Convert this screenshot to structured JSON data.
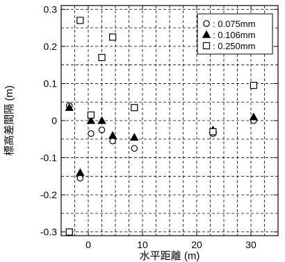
{
  "chart_data": {
    "type": "scatter",
    "xlabel": "水平距離 (m)",
    "ylabel": "標高差間隔 (m)",
    "xlim": [
      -5,
      35
    ],
    "ylim": [
      -0.31,
      0.31
    ],
    "x_ticks": [
      0,
      10,
      20,
      30
    ],
    "y_ticks": [
      -0.3,
      -0.2,
      -0.1,
      0,
      0.1,
      0.2,
      0.3
    ],
    "x_tick_labels": [
      "0",
      "10",
      "20",
      "30"
    ],
    "y_tick_labels": [
      "-0.3",
      "-0.2",
      "-0.1",
      "0",
      "0.1",
      "0.2",
      "0.3"
    ],
    "grid": true,
    "legend_position": "top-right",
    "series": [
      {
        "name": ": 0.075mm",
        "marker": "circle-open",
        "points": [
          {
            "x": -3.5,
            "y": 0.04
          },
          {
            "x": -1.5,
            "y": -0.155
          },
          {
            "x": 0.5,
            "y": -0.035
          },
          {
            "x": 2.5,
            "y": -0.025
          },
          {
            "x": 4.5,
            "y": -0.055
          },
          {
            "x": 8.5,
            "y": -0.075
          },
          {
            "x": 23.0,
            "y": -0.035
          },
          {
            "x": 30.5,
            "y": 0.0
          }
        ]
      },
      {
        "name": ": 0.106mm",
        "marker": "triangle-filled",
        "points": [
          {
            "x": -3.5,
            "y": 0.035
          },
          {
            "x": -1.5,
            "y": -0.14
          },
          {
            "x": 0.5,
            "y": 0.0
          },
          {
            "x": 2.5,
            "y": 0.0
          },
          {
            "x": 4.5,
            "y": -0.04
          },
          {
            "x": 8.5,
            "y": -0.045
          },
          {
            "x": 23.0,
            "y": -0.025
          },
          {
            "x": 30.5,
            "y": 0.01
          }
        ]
      },
      {
        "name": ": 0.250mm",
        "marker": "square-open",
        "points": [
          {
            "x": -3.5,
            "y": -0.3
          },
          {
            "x": -1.5,
            "y": 0.27
          },
          {
            "x": 0.5,
            "y": 0.015
          },
          {
            "x": 2.5,
            "y": 0.17
          },
          {
            "x": 4.5,
            "y": 0.225
          },
          {
            "x": 8.5,
            "y": 0.035
          },
          {
            "x": 23.0,
            "y": -0.03
          },
          {
            "x": 30.5,
            "y": 0.095
          }
        ]
      }
    ]
  }
}
